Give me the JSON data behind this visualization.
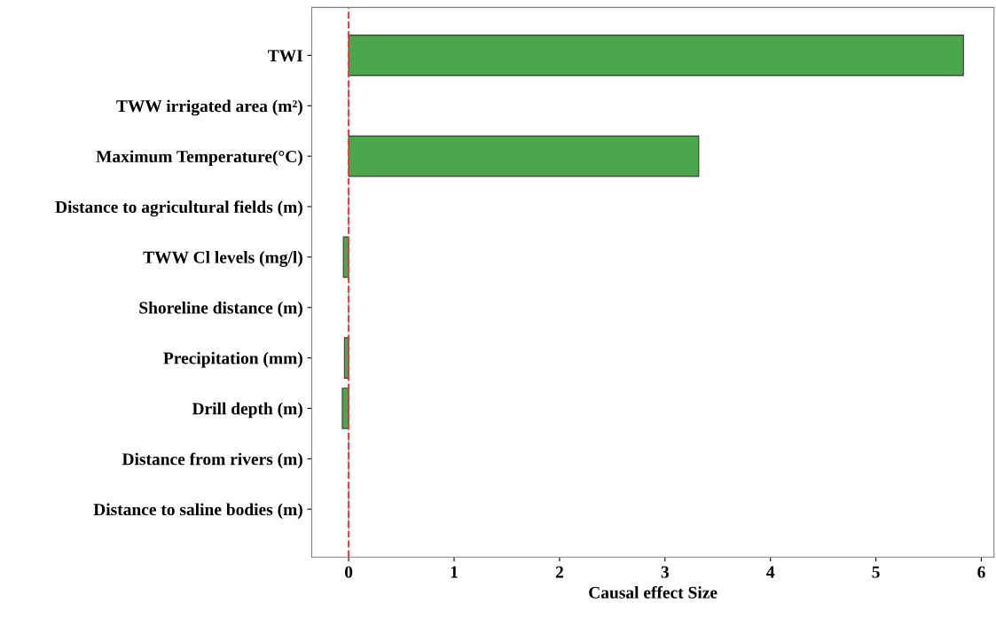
{
  "chart_data": {
    "type": "bar",
    "orientation": "horizontal",
    "xlabel": "Causal effect Size",
    "categories": [
      "TWI",
      "TWW irrigated area (m²)",
      "Maximum Temperature(°C)",
      "Distance to agricultural fields (m)",
      "TWW Cl levels (mg/l)",
      "Shoreline distance (m)",
      "Precipitation (mm)",
      "Drill depth (m)",
      "Distance from rivers (m)",
      "Distance to saline bodies (m)"
    ],
    "values": [
      5.83,
      0,
      3.32,
      0,
      -0.05,
      0,
      -0.04,
      -0.06,
      0,
      0
    ],
    "color": "#4ca64c",
    "xlim": [
      -0.35,
      6.12
    ],
    "xticks": [
      0,
      1,
      2,
      3,
      4,
      5,
      6
    ],
    "ref_lines": [
      {
        "axis": "x",
        "value": 0,
        "color": "#ff3333",
        "line_style": "dashed"
      }
    ],
    "grid": false,
    "legend": false
  }
}
